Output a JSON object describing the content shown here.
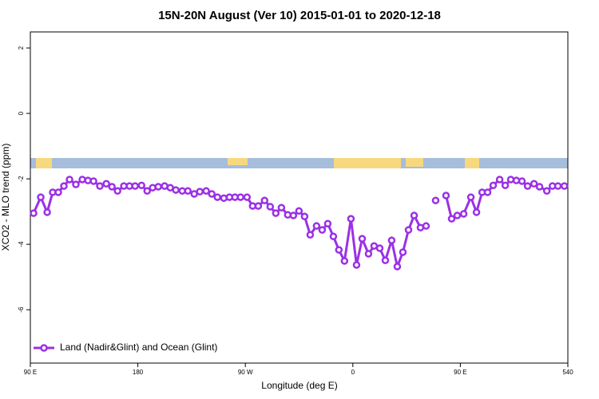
{
  "chart_data": {
    "type": "line",
    "title": "15N-20N August (Ver 10)   2015-01-01 to 2020-12-18",
    "x_label": "Longitude (deg E)",
    "y_label": "XCO2 - MLO trend (ppm)",
    "x": [
      92.7,
      98.7,
      104.1,
      108.7,
      113.4,
      118.1,
      122.8,
      128.1,
      133.5,
      138.2,
      142.9,
      148.2,
      153.6,
      158.3,
      163.0,
      168.3,
      173.0,
      177.7,
      183.1,
      187.8,
      192.4,
      197.1,
      202.4,
      207.1,
      211.8,
      217.2,
      221.9,
      227.2,
      231.9,
      237.2,
      241.9,
      246.6,
      252.0,
      256.7,
      261.3,
      266.0,
      271.4,
      276.1,
      280.8,
      286.1,
      290.8,
      295.5,
      300.2,
      305.5,
      310.2,
      314.9,
      319.6,
      324.3,
      329.6,
      334.3,
      339.0,
      343.7,
      348.3,
      353.0,
      358.4,
      363.1,
      367.8,
      373.1,
      377.8,
      382.5,
      387.2,
      392.5,
      397.2,
      401.9,
      406.6,
      411.3,
      416.6,
      421.3,
      426.0,
      429.3,
      434.0,
      438.0,
      442.7,
      447.4,
      452.8,
      458.8,
      463.5,
      468.2,
      472.8,
      477.5,
      482.9,
      487.6,
      492.2,
      496.9,
      501.6,
      506.3,
      511.7,
      516.3,
      522.4,
      527.1,
      531.7,
      537.1
    ],
    "series": [
      {
        "name": "Land (Nadir&Glint) and Ocean (Glint)",
        "color": "#9b30e6",
        "values": [
          -3.05,
          -2.56,
          -3.02,
          -2.41,
          -2.41,
          -2.22,
          -2.02,
          -2.17,
          -2.02,
          -2.05,
          -2.07,
          -2.22,
          -2.15,
          -2.24,
          -2.37,
          -2.22,
          -2.22,
          -2.22,
          -2.2,
          -2.37,
          -2.27,
          -2.24,
          -2.22,
          -2.27,
          -2.34,
          -2.37,
          -2.37,
          -2.46,
          -2.39,
          -2.37,
          -2.46,
          -2.56,
          -2.59,
          -2.56,
          -2.56,
          -2.56,
          -2.56,
          -2.83,
          -2.83,
          -2.66,
          -2.85,
          -3.05,
          -2.88,
          -3.1,
          -3.12,
          -2.98,
          -3.15,
          -3.71,
          -3.44,
          -3.56,
          -3.37,
          -3.76,
          -4.17,
          -4.51,
          -3.22,
          -4.63,
          -3.83,
          -4.29,
          -4.05,
          -4.12,
          -4.49,
          -3.88,
          -4.68,
          -4.24,
          -3.56,
          -3.12,
          -3.49,
          -3.44,
          null,
          -2.66,
          null,
          -2.51,
          -3.22,
          -3.12,
          -3.07,
          -2.56,
          -3.02,
          -2.41,
          -2.41,
          -2.2,
          -2.02,
          -2.2,
          -2.02,
          -2.05,
          -2.07,
          -2.22,
          -2.15,
          -2.24,
          -2.37,
          -2.22,
          -2.22,
          -2.22
        ]
      }
    ],
    "xlim": [
      90,
      540
    ],
    "ylim": [
      -7.63,
      2.49
    ],
    "xticks": [
      {
        "value": 90,
        "label": "90 E"
      },
      180,
      {
        "value": 270,
        "label": "90 W"
      },
      {
        "value": 360,
        "label": "0"
      },
      {
        "value": 450,
        "label": "90 E"
      },
      540
    ],
    "yticks": [
      -6,
      -4,
      -2,
      0,
      2
    ],
    "legend": "bottom-left"
  }
}
